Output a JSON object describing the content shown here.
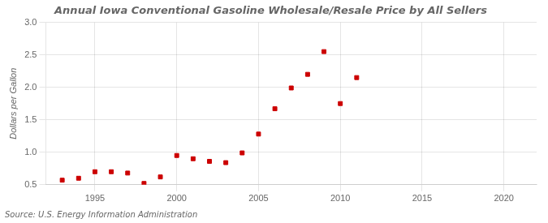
{
  "chart_data": {
    "type": "scatter",
    "title": "Annual Iowa Conventional Gasoline Wholesale/Resale Price by All Sellers",
    "y_label": "Dollars per Gallon",
    "annotations": [
      "Source: U.S. Energy Information Administration"
    ],
    "x": [
      1993,
      1994,
      1995,
      1996,
      1997,
      1998,
      1999,
      2000,
      2001,
      2002,
      2003,
      2004,
      2005,
      2006,
      2007,
      2008,
      2009,
      2010,
      2011
    ],
    "values": [
      0.57,
      0.6,
      0.7,
      0.7,
      0.68,
      0.52,
      0.62,
      0.95,
      0.9,
      0.86,
      0.84,
      0.99,
      1.28,
      1.67,
      1.99,
      2.2,
      2.55,
      1.75,
      2.15
    ],
    "color": "#cc0000",
    "marker": "square",
    "xlim": [
      1992,
      2022
    ],
    "xticks": [
      1995,
      2000,
      2005,
      2010,
      2015,
      2020
    ],
    "ylim": [
      0.5,
      3.0
    ],
    "yticks": [
      0.5,
      {
        "value": 1.0,
        "label": "1.0"
      },
      1.5,
      {
        "value": 2.0,
        "label": "2.0"
      },
      2.5,
      {
        "value": 3.0,
        "label": "3.0"
      }
    ],
    "grid": true
  }
}
